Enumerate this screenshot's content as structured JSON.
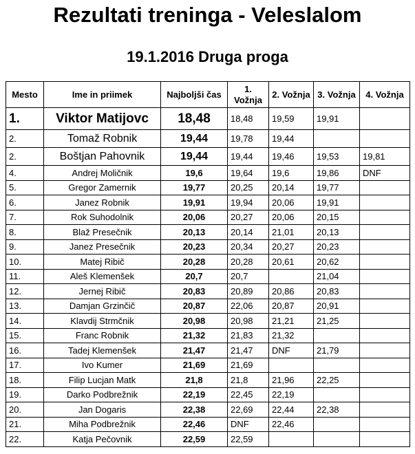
{
  "title": "Rezultati treninga - Veleslalom",
  "subtitle": "19.1.2016 Druga proga",
  "table": {
    "header": [
      "Mesto",
      "Ime in priimek",
      "Najboljši čas",
      "1. Vožnja",
      "2. Vožnja",
      "3. Vožnja",
      "4. Vožnja"
    ],
    "rows": [
      [
        "1.",
        "Viktor Matijovc",
        "18,48",
        "18,48",
        "19,59",
        "19,91",
        null
      ],
      [
        "2.",
        "Tomaž Robnik",
        "19,44",
        "19,78",
        "19,44",
        null,
        null
      ],
      [
        "2.",
        "Boštjan Pahovnik",
        "19,44",
        "19,44",
        "19,46",
        "19,53",
        "19,81"
      ],
      [
        "4.",
        "Andrej Moličnik",
        "19,6",
        "19,64",
        "19,6",
        "19,86",
        "DNF"
      ],
      [
        "5.",
        "Gregor Zamernik",
        "19,77",
        "20,25",
        "20,14",
        "19,77",
        null
      ],
      [
        "6.",
        "Janez Robnik",
        "19,91",
        "19,94",
        "20,06",
        "19,91",
        null
      ],
      [
        "7.",
        "Rok Suhodolnik",
        "20,06",
        "20,27",
        "20,06",
        "20,15",
        null
      ],
      [
        "8.",
        "Blaž Presečnik",
        "20,13",
        "20,14",
        "21,01",
        "20,13",
        null
      ],
      [
        "9.",
        "Janez Presečnik",
        "20,23",
        "20,34",
        "20,27",
        "20,23",
        null
      ],
      [
        "10.",
        "Matej Ribič",
        "20,28",
        "20,28",
        "20,61",
        "20,62",
        null
      ],
      [
        "11.",
        "Aleš Klemenšek",
        "20,7",
        "20,7",
        null,
        "21,04",
        null
      ],
      [
        "12.",
        "Jernej Ribič",
        "20,83",
        "20,89",
        "20,86",
        "20,83",
        null
      ],
      [
        "13.",
        "Damjan Grzinčič",
        "20,87",
        "22,06",
        "20,87",
        "20,91",
        null
      ],
      [
        "14.",
        "Klavdij Strmčnik",
        "20,98",
        "20,98",
        "21,21",
        "21,25",
        null
      ],
      [
        "15.",
        "Franc Robnik",
        "21,32",
        "21,83",
        "21,32",
        null,
        null
      ],
      [
        "16.",
        "Tadej Klemenšek",
        "21,47",
        "21,47",
        "DNF",
        "21,79",
        null
      ],
      [
        "17.",
        "Ivo Kumer",
        "21,69",
        "21,69",
        null,
        null,
        null
      ],
      [
        "18.",
        "Filip Lucjan Matk",
        "21,8",
        "21,8",
        "21,96",
        "22,25",
        null
      ],
      [
        "19.",
        "Darko Podbrežnik",
        "22,19",
        "22,45",
        "22,19",
        null,
        null
      ],
      [
        "20.",
        "Jan Dogaris",
        "22,38",
        "22,69",
        "22,44",
        "22,38",
        null
      ],
      [
        "21.",
        "Miha Podbrežnik",
        "22,46",
        "DNF",
        "22,46",
        null,
        null
      ],
      [
        "22.",
        "Katja Pečovnik",
        "22,59",
        "22,59",
        null,
        null,
        null
      ]
    ]
  }
}
